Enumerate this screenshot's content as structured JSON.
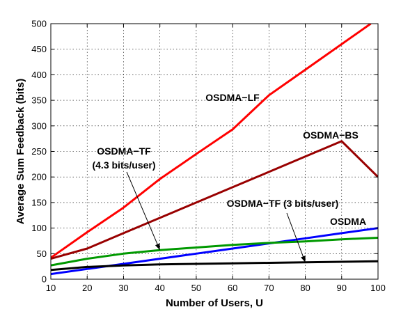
{
  "chart_data": {
    "type": "line",
    "title": "",
    "xlabel": "Number of Users, U",
    "ylabel": "Average Sum Feedback (bits)",
    "xlim": [
      10,
      100
    ],
    "ylim": [
      0,
      500
    ],
    "xticks": [
      10,
      20,
      30,
      40,
      50,
      60,
      70,
      80,
      90,
      100
    ],
    "yticks": [
      0,
      50,
      100,
      150,
      200,
      250,
      300,
      350,
      400,
      450,
      500
    ],
    "grid": true,
    "legend": "none (inline annotations)",
    "series": [
      {
        "name": "OSDMA-LF",
        "color": "#ff0000",
        "x": [
          10,
          20,
          30,
          40,
          50,
          60,
          70,
          80,
          90,
          98
        ],
        "y": [
          42,
          92,
          140,
          196,
          245,
          293,
          360,
          410,
          460,
          500
        ]
      },
      {
        "name": "OSDMA-BS",
        "color": "#990000",
        "x": [
          10,
          20,
          30,
          40,
          50,
          60,
          70,
          80,
          90,
          100
        ],
        "y": [
          40,
          60,
          90,
          120,
          150,
          180,
          210,
          240,
          270,
          200
        ]
      },
      {
        "name": "OSDMA",
        "color": "#0000ff",
        "x": [
          10,
          20,
          30,
          40,
          50,
          60,
          70,
          80,
          90,
          100
        ],
        "y": [
          10,
          20,
          30,
          40,
          50,
          60,
          70,
          80,
          90,
          100
        ]
      },
      {
        "name": "OSDMA-TF (4.3 bits/user)",
        "color": "#009900",
        "x": [
          10,
          20,
          30,
          40,
          50,
          60,
          70,
          80,
          90,
          100
        ],
        "y": [
          27,
          40,
          50,
          57,
          62,
          67,
          71,
          74,
          78,
          81
        ]
      },
      {
        "name": "OSDMA-TF (3 bits/user)",
        "color": "#000000",
        "x": [
          10,
          20,
          30,
          40,
          50,
          60,
          70,
          80,
          90,
          100
        ],
        "y": [
          18,
          24,
          27,
          29,
          30,
          31,
          32,
          33,
          34,
          35
        ]
      }
    ],
    "annotations": [
      {
        "lines": [
          "OSDMA−LF"
        ],
        "arrow": false
      },
      {
        "lines": [
          "OSDMA−BS"
        ],
        "arrow": false
      },
      {
        "lines": [
          "OSDMA"
        ],
        "arrow": false
      },
      {
        "lines": [
          "OSDMA−TF",
          "(4.3 bits/user)"
        ],
        "arrow": true,
        "arrow_target": [
          40,
          57
        ]
      },
      {
        "lines": [
          "OSDMA−TF (3 bits/user)"
        ],
        "arrow": true,
        "arrow_target": [
          80,
          33
        ]
      }
    ]
  }
}
